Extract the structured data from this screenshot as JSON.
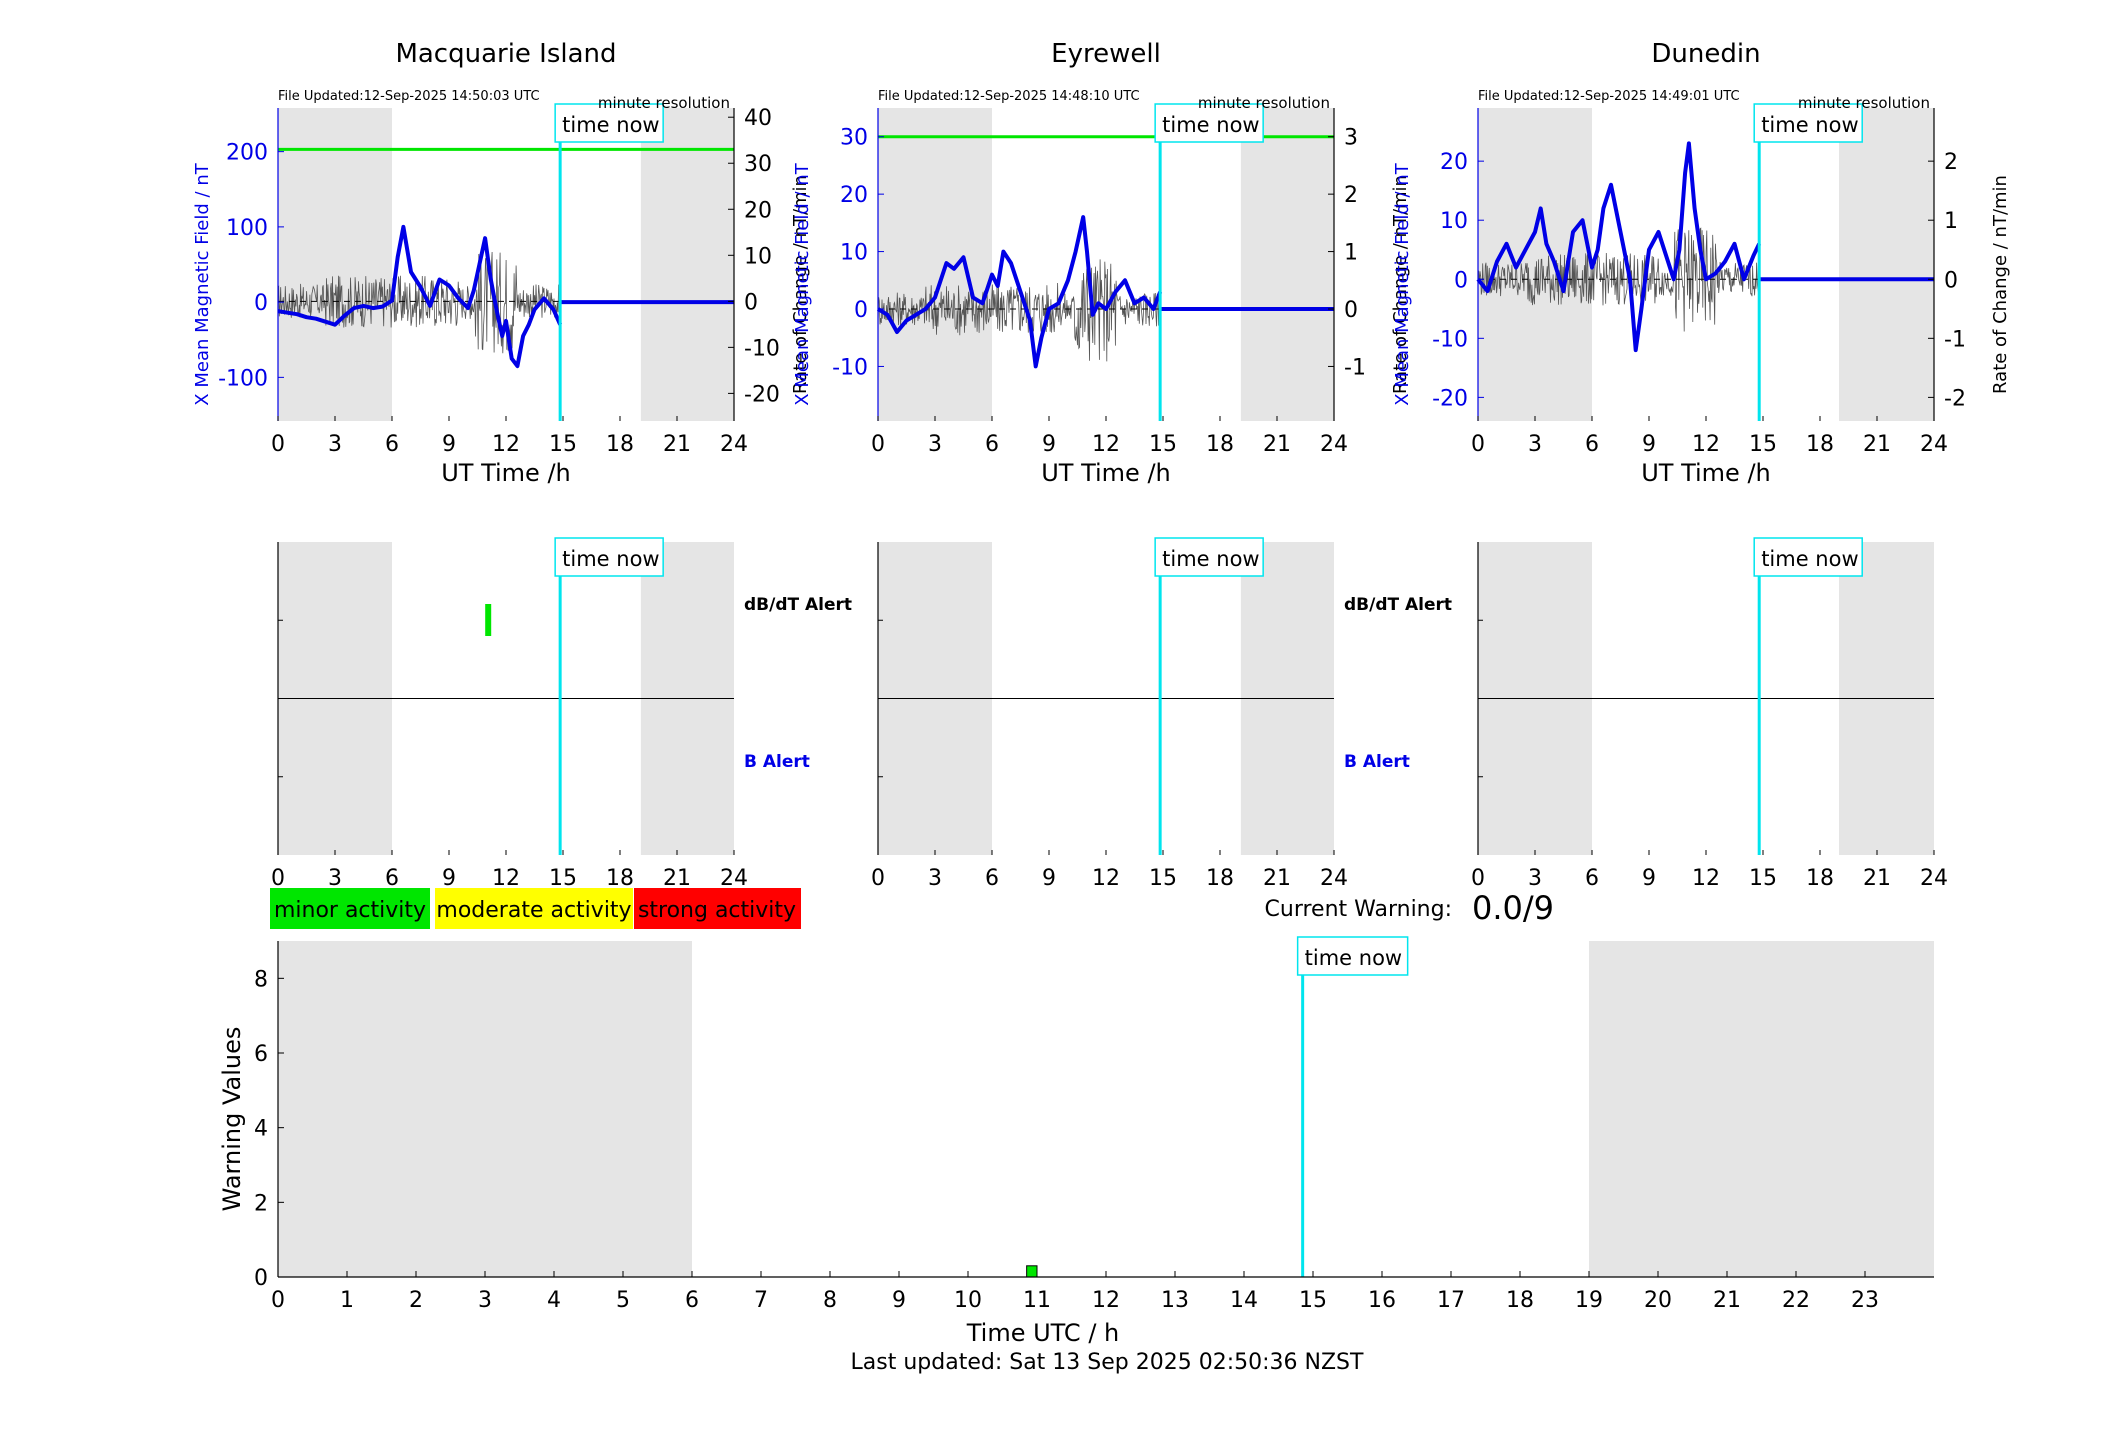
{
  "colors": {
    "magnetic_field": "#0000e6",
    "rate_of_change": "#555555",
    "time_now": "#00e5ee",
    "threshold": "#00e600",
    "night_shading": "#e5e5e5",
    "minor": "#00e600",
    "moderate": "#ffff00",
    "strong": "#ff0000"
  },
  "legend": {
    "minor": "minor activity",
    "moderate": "moderate activity",
    "strong": "strong activity"
  },
  "current_warning": {
    "label": "Current Warning:",
    "value": "0.0/9"
  },
  "last_updated": "Last updated: Sat 13 Sep 2025 02:50:36 NZST",
  "chart_data": [
    {
      "type": "line",
      "title": "Macquarie Island",
      "file_updated": "File Updated:12-Sep-2025 14:50:03 UTC",
      "resolution": "minute resolution",
      "time_now_label": "time now",
      "time_now": 14.85,
      "xlabel": "UT Time /h",
      "ylabel_left": "X Mean Magnetic Field / nT",
      "ylabel_right": "Rate of Change / nT/min",
      "xlim": [
        0,
        24
      ],
      "ylim_left": [
        -158,
        258
      ],
      "ylim_right": [
        -26,
        42
      ],
      "xticks": [
        0,
        3,
        6,
        9,
        12,
        15,
        18,
        21,
        24
      ],
      "yticks_left": [
        -100,
        0,
        100,
        200
      ],
      "yticks_right": [
        -20,
        -10,
        0,
        10,
        20,
        30,
        40
      ],
      "threshold_right": 33,
      "night_shading": [
        [
          0,
          6
        ],
        [
          19.1,
          24
        ]
      ],
      "series": [
        {
          "role": "field",
          "x": [
            0,
            0.5,
            1,
            1.5,
            2,
            2.5,
            3,
            3.5,
            4,
            4.5,
            5,
            5.5,
            6,
            6.3,
            6.6,
            7,
            7.5,
            8,
            8.5,
            9,
            9.5,
            10,
            10.3,
            10.6,
            10.9,
            11.2,
            11.5,
            11.8,
            12,
            12.3,
            12.6,
            12.9,
            13.2,
            13.5,
            14,
            14.5,
            14.85
          ],
          "y": [
            -12,
            -14,
            -16,
            -20,
            -22,
            -26,
            -30,
            -18,
            -8,
            -5,
            -8,
            -6,
            2,
            60,
            100,
            40,
            20,
            -5,
            30,
            22,
            5,
            -8,
            15,
            50,
            85,
            30,
            -10,
            -45,
            -25,
            -75,
            -85,
            -45,
            -30,
            -10,
            5,
            -10,
            -30
          ]
        },
        {
          "role": "after",
          "x": [
            14.85,
            24
          ],
          "y": [
            0,
            0
          ]
        }
      ]
    },
    {
      "type": "line",
      "title": "Eyrewell",
      "file_updated": "File Updated:12-Sep-2025 14:48:10 UTC",
      "resolution": "minute resolution",
      "time_now_label": "time now",
      "time_now": 14.85,
      "xlabel": "UT Time /h",
      "ylabel_left": "X Mean Magnetic Field / nT",
      "ylabel_right": "Rate of Change / nT/min",
      "xlim": [
        0,
        24
      ],
      "ylim_left": [
        -19.5,
        35
      ],
      "ylim_right": [
        -1.95,
        3.5
      ],
      "xticks": [
        0,
        3,
        6,
        9,
        12,
        15,
        18,
        21,
        24
      ],
      "yticks_left": [
        -10,
        0,
        10,
        20,
        30
      ],
      "yticks_right": [
        -1,
        0,
        1,
        2,
        3
      ],
      "threshold_right": 3,
      "night_shading": [
        [
          0,
          6
        ],
        [
          19.1,
          24
        ]
      ],
      "series": [
        {
          "role": "field",
          "x": [
            0,
            0.5,
            1,
            1.5,
            2,
            2.5,
            3,
            3.3,
            3.6,
            4,
            4.5,
            5,
            5.5,
            6,
            6.3,
            6.6,
            7,
            7.5,
            8,
            8.3,
            8.6,
            9,
            9.5,
            10,
            10.4,
            10.8,
            11,
            11.3,
            11.6,
            12,
            12.5,
            13,
            13.5,
            14,
            14.5,
            14.85
          ],
          "y": [
            0,
            -1,
            -4,
            -2,
            -1,
            0,
            2,
            5,
            8,
            7,
            9,
            2,
            1,
            6,
            4,
            10,
            8,
            3,
            -2,
            -10,
            -5,
            0,
            1,
            5,
            10,
            16,
            10,
            -1,
            1,
            0,
            3,
            5,
            1,
            2,
            0,
            3
          ]
        },
        {
          "role": "after",
          "x": [
            14.85,
            24
          ],
          "y": [
            0,
            0
          ]
        }
      ]
    },
    {
      "type": "line",
      "title": "Dunedin",
      "file_updated": "File Updated:12-Sep-2025 14:49:01 UTC",
      "resolution": "minute resolution",
      "time_now_label": "time now",
      "time_now": 14.8,
      "xlabel": "UT Time /h",
      "ylabel_left": "X Mean Magnetic Field / nT",
      "ylabel_right": "Rate of Change / nT/min",
      "xlim": [
        0,
        24
      ],
      "ylim_left": [
        -24,
        29
      ],
      "ylim_right": [
        -2.4,
        2.9
      ],
      "xticks": [
        0,
        3,
        6,
        9,
        12,
        15,
        18,
        21,
        24
      ],
      "yticks_left": [
        -20,
        -10,
        0,
        10,
        20
      ],
      "yticks_right": [
        -2,
        -1,
        0,
        1,
        2
      ],
      "night_shading": [
        [
          0,
          6
        ],
        [
          19,
          24
        ]
      ],
      "series": [
        {
          "role": "field",
          "x": [
            0,
            0.5,
            1,
            1.5,
            2,
            2.5,
            3,
            3.3,
            3.6,
            4,
            4.5,
            5,
            5.5,
            6,
            6.3,
            6.6,
            7,
            7.5,
            8,
            8.3,
            8.6,
            9,
            9.5,
            10,
            10.3,
            10.6,
            10.9,
            11.1,
            11.4,
            11.7,
            12,
            12.5,
            13,
            13.5,
            14,
            14.5,
            14.8
          ],
          "y": [
            0,
            -2,
            3,
            6,
            2,
            5,
            8,
            12,
            6,
            3,
            -2,
            8,
            10,
            2,
            5,
            12,
            16,
            8,
            0,
            -12,
            -5,
            5,
            8,
            3,
            0,
            5,
            18,
            23,
            12,
            5,
            0,
            1,
            3,
            6,
            0,
            4,
            6
          ]
        },
        {
          "role": "after",
          "x": [
            14.8,
            24
          ],
          "y": [
            0,
            0
          ]
        }
      ]
    },
    {
      "type": "bar",
      "title": "",
      "panel": "alerts",
      "time_now_label": "time now",
      "time_now": 14.85,
      "xlim": [
        0,
        24
      ],
      "xticks": [
        0,
        3,
        6,
        9,
        12,
        15,
        18,
        21,
        24
      ],
      "dbdt_label": "dB/dT Alert",
      "b_label": "B Alert",
      "night_shading": [
        [
          0,
          6
        ],
        [
          19.1,
          24
        ]
      ],
      "dbdt_alerts": [
        {
          "start": 10.8,
          "end": 11.0,
          "level": "minor"
        }
      ],
      "b_alerts": []
    },
    {
      "type": "bar",
      "title": "",
      "panel": "alerts",
      "time_now_label": "time now",
      "time_now": 14.85,
      "xlim": [
        0,
        24
      ],
      "xticks": [
        0,
        3,
        6,
        9,
        12,
        15,
        18,
        21,
        24
      ],
      "dbdt_label": "dB/dT Alert",
      "b_label": "B Alert",
      "night_shading": [
        [
          0,
          6
        ],
        [
          19.1,
          24
        ]
      ],
      "dbdt_alerts": [],
      "b_alerts": []
    },
    {
      "type": "bar",
      "title": "",
      "panel": "alerts",
      "time_now_label": "time now",
      "time_now": 14.8,
      "xlim": [
        0,
        24
      ],
      "xticks": [
        0,
        3,
        6,
        9,
        12,
        15,
        18,
        21,
        24
      ],
      "night_shading": [
        [
          0,
          6
        ],
        [
          19,
          24
        ]
      ],
      "dbdt_alerts": [],
      "b_alerts": []
    },
    {
      "type": "bar",
      "title": "",
      "panel": "warning",
      "time_now_label": "time now",
      "time_now": 14.85,
      "xlabel": "Time UTC / h",
      "ylabel": "Warning Values",
      "xlim": [
        0,
        24
      ],
      "ylim": [
        0,
        9
      ],
      "xticks": [
        0,
        1,
        2,
        3,
        4,
        5,
        6,
        7,
        8,
        9,
        10,
        11,
        12,
        13,
        14,
        15,
        16,
        17,
        18,
        19,
        20,
        21,
        22,
        23
      ],
      "yticks": [
        0,
        2,
        4,
        6,
        8
      ],
      "night_shading": [
        [
          0,
          6
        ],
        [
          19,
          24
        ]
      ],
      "bars": [
        {
          "start": 10.85,
          "end": 11.0,
          "value": 0.3,
          "level": "minor"
        }
      ]
    }
  ]
}
